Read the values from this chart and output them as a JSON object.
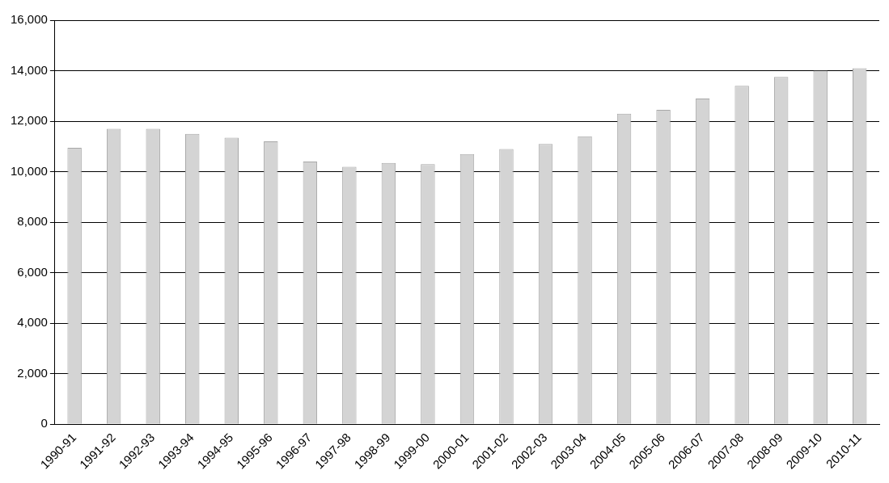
{
  "chart_data": {
    "type": "bar",
    "categories": [
      "1990-91",
      "1991-92",
      "1992-93",
      "1993-94",
      "1994-95",
      "1995-96",
      "1996-97",
      "1997-98",
      "1998-99",
      "1999-00",
      "2000-01",
      "2001-02",
      "2002-03",
      "2003-04",
      "2004-05",
      "2005-06",
      "2006-07",
      "2007-08",
      "2008-09",
      "2009-10",
      "2010-11"
    ],
    "values": [
      10950,
      11700,
      11700,
      11500,
      11350,
      11200,
      10400,
      10200,
      10350,
      10300,
      10700,
      10900,
      11100,
      11400,
      12300,
      12450,
      12900,
      13400,
      13750,
      14000,
      14100
    ],
    "color": "#d4d4d4",
    "ylim": [
      0,
      16000
    ],
    "yticks": [
      0,
      {
        "value": 2000,
        "label": "2,000"
      },
      {
        "value": 4000,
        "label": "4,000"
      },
      {
        "value": 6000,
        "label": "6,000"
      },
      {
        "value": 8000,
        "label": "8,000"
      },
      {
        "value": 10000,
        "label": "10,000"
      },
      {
        "value": 12000,
        "label": "12,000"
      },
      {
        "value": 14000,
        "label": "14,000"
      },
      {
        "value": 16000,
        "label": "16,000"
      }
    ],
    "grid": "y"
  }
}
